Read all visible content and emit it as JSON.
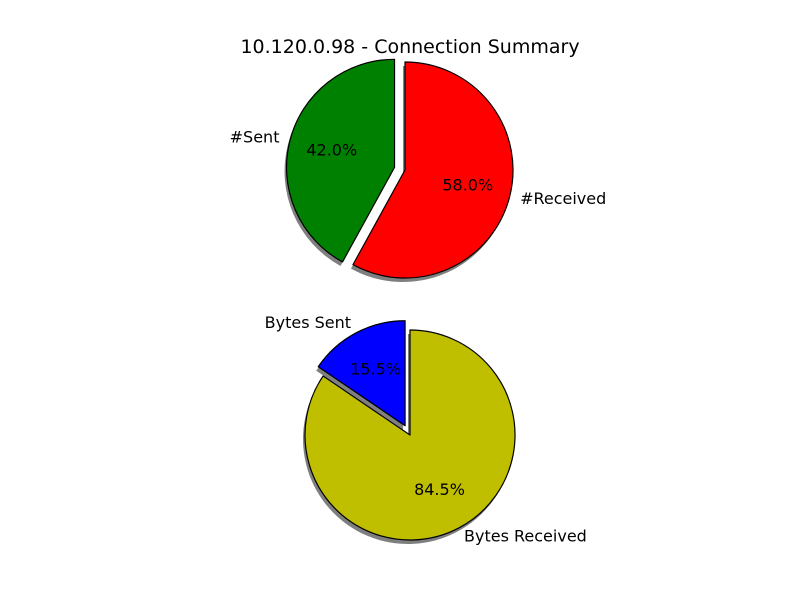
{
  "title": "10.120.0.98 - Connection Summary",
  "chart_data": [
    {
      "type": "pie",
      "labels": [
        "#Sent",
        "#Received"
      ],
      "values": [
        42.0,
        58.0
      ],
      "pct_labels": [
        "42.0%",
        "58.0%"
      ],
      "colors": [
        "#008000",
        "#ff0000"
      ],
      "explode": [
        0.1,
        0
      ],
      "shadow": true,
      "start_angle": 90
    },
    {
      "type": "pie",
      "labels": [
        "Bytes Sent",
        "Bytes Received"
      ],
      "values": [
        15.5,
        84.5
      ],
      "pct_labels": [
        "15.5%",
        "84.5%"
      ],
      "colors": [
        "#0000ff",
        "#bfbf00"
      ],
      "explode": [
        0.1,
        0
      ],
      "shadow": true,
      "start_angle": 90
    }
  ]
}
